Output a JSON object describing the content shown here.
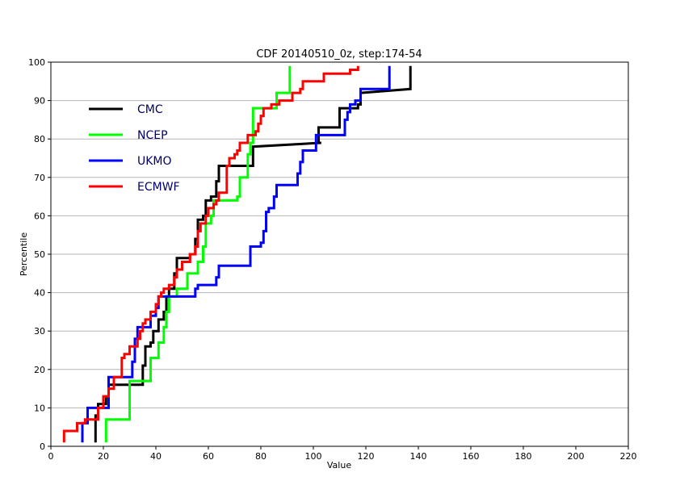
{
  "chart_data": {
    "type": "line",
    "title": "CDF 20140510_0z, step:174-54",
    "xlabel": "Value",
    "ylabel": "Percentile",
    "xlim": [
      0,
      220
    ],
    "ylim": [
      0,
      100
    ],
    "xticks": [
      0,
      20,
      40,
      60,
      80,
      100,
      120,
      140,
      160,
      180,
      200,
      220
    ],
    "yticks": [
      0,
      10,
      20,
      30,
      40,
      50,
      60,
      70,
      80,
      90,
      100
    ],
    "grid": "horizontal",
    "legend_position": "top-left",
    "series": [
      {
        "name": "CMC",
        "color": "#000000",
        "points": [
          [
            17,
            1
          ],
          [
            17,
            8
          ],
          [
            18,
            8
          ],
          [
            18,
            11
          ],
          [
            21,
            11
          ],
          [
            21,
            13
          ],
          [
            22,
            13
          ],
          [
            22,
            16
          ],
          [
            35,
            16
          ],
          [
            35,
            18
          ],
          [
            35,
            18
          ],
          [
            35,
            21
          ],
          [
            36,
            21
          ],
          [
            36,
            26
          ],
          [
            38,
            26
          ],
          [
            38,
            27
          ],
          [
            39,
            27
          ],
          [
            39,
            30
          ],
          [
            41,
            30
          ],
          [
            41,
            33
          ],
          [
            43,
            33
          ],
          [
            43,
            35
          ],
          [
            44,
            35
          ],
          [
            44,
            39
          ],
          [
            45,
            39
          ],
          [
            45,
            41
          ],
          [
            47,
            41
          ],
          [
            47,
            45
          ],
          [
            48,
            45
          ],
          [
            48,
            49
          ],
          [
            53,
            49
          ],
          [
            53,
            50
          ],
          [
            55,
            50
          ],
          [
            55,
            54
          ],
          [
            56,
            54
          ],
          [
            56,
            59
          ],
          [
            58,
            59
          ],
          [
            58,
            60
          ],
          [
            59,
            60
          ],
          [
            59,
            64
          ],
          [
            61,
            64
          ],
          [
            61,
            65
          ],
          [
            63,
            65
          ],
          [
            63,
            69
          ],
          [
            64,
            69
          ],
          [
            64,
            73
          ],
          [
            77,
            73
          ],
          [
            77,
            78
          ],
          [
            103,
            79
          ],
          [
            102,
            79
          ],
          [
            102,
            83
          ],
          [
            110,
            83
          ],
          [
            110,
            88
          ],
          [
            117,
            88
          ],
          [
            117,
            89
          ],
          [
            118,
            89
          ],
          [
            118,
            92
          ],
          [
            137,
            93
          ],
          [
            137,
            99
          ]
        ]
      },
      {
        "name": "NCEP",
        "color": "#00ff00",
        "points": [
          [
            21,
            1
          ],
          [
            21,
            7
          ],
          [
            30,
            7
          ],
          [
            30,
            17
          ],
          [
            38,
            17
          ],
          [
            38,
            23
          ],
          [
            41,
            23
          ],
          [
            41,
            27
          ],
          [
            43,
            27
          ],
          [
            43,
            31
          ],
          [
            44,
            31
          ],
          [
            44,
            35
          ],
          [
            45,
            35
          ],
          [
            45,
            39
          ],
          [
            48,
            39
          ],
          [
            48,
            41
          ],
          [
            52,
            41
          ],
          [
            52,
            45
          ],
          [
            56,
            45
          ],
          [
            56,
            48
          ],
          [
            58,
            48
          ],
          [
            58,
            52
          ],
          [
            59,
            52
          ],
          [
            59,
            58
          ],
          [
            61,
            58
          ],
          [
            61,
            60
          ],
          [
            62,
            60
          ],
          [
            62,
            64
          ],
          [
            71,
            64
          ],
          [
            71,
            65
          ],
          [
            72,
            65
          ],
          [
            72,
            70
          ],
          [
            75,
            70
          ],
          [
            75,
            76
          ],
          [
            76,
            76
          ],
          [
            76,
            79
          ],
          [
            77,
            79
          ],
          [
            77,
            88
          ],
          [
            86,
            88
          ],
          [
            86,
            92
          ],
          [
            91,
            92
          ],
          [
            91,
            99
          ]
        ]
      },
      {
        "name": "UKMO",
        "color": "#0000ff",
        "points": [
          [
            12,
            1
          ],
          [
            12,
            6
          ],
          [
            14,
            6
          ],
          [
            14,
            10
          ],
          [
            22,
            10
          ],
          [
            22,
            12
          ],
          [
            22,
            12
          ],
          [
            22,
            18
          ],
          [
            31,
            18
          ],
          [
            31,
            22
          ],
          [
            32,
            22
          ],
          [
            32,
            25
          ],
          [
            32,
            25
          ],
          [
            32,
            28
          ],
          [
            33,
            28
          ],
          [
            33,
            31
          ],
          [
            38,
            31
          ],
          [
            38,
            34
          ],
          [
            40,
            34
          ],
          [
            40,
            36
          ],
          [
            41,
            36
          ],
          [
            41,
            39
          ],
          [
            55,
            39
          ],
          [
            55,
            41
          ],
          [
            56,
            41
          ],
          [
            56,
            42
          ],
          [
            63,
            42
          ],
          [
            63,
            44
          ],
          [
            64,
            44
          ],
          [
            64,
            47
          ],
          [
            76,
            47
          ],
          [
            76,
            52
          ],
          [
            80,
            52
          ],
          [
            80,
            53
          ],
          [
            81,
            53
          ],
          [
            81,
            56
          ],
          [
            82,
            56
          ],
          [
            82,
            58
          ],
          [
            82,
            58
          ],
          [
            82,
            61
          ],
          [
            83,
            61
          ],
          [
            83,
            62
          ],
          [
            85,
            62
          ],
          [
            85,
            65
          ],
          [
            86,
            65
          ],
          [
            86,
            68
          ],
          [
            94,
            68
          ],
          [
            94,
            71
          ],
          [
            95,
            71
          ],
          [
            95,
            74
          ],
          [
            96,
            74
          ],
          [
            96,
            77
          ],
          [
            101,
            77
          ],
          [
            101,
            79
          ],
          [
            101,
            79
          ],
          [
            101,
            81
          ],
          [
            112,
            81
          ],
          [
            112,
            85
          ],
          [
            113,
            85
          ],
          [
            113,
            87
          ],
          [
            114,
            87
          ],
          [
            114,
            89
          ],
          [
            116,
            89
          ],
          [
            116,
            90
          ],
          [
            118,
            90
          ],
          [
            118,
            93
          ],
          [
            129,
            93
          ],
          [
            129,
            99
          ]
        ]
      },
      {
        "name": "ECMWF",
        "color": "#ff0000",
        "points": [
          [
            5,
            1
          ],
          [
            5,
            4
          ],
          [
            10,
            4
          ],
          [
            10,
            6
          ],
          [
            13,
            6
          ],
          [
            13,
            7
          ],
          [
            18,
            7
          ],
          [
            18,
            10
          ],
          [
            20,
            10
          ],
          [
            20,
            13
          ],
          [
            22,
            13
          ],
          [
            22,
            15
          ],
          [
            24,
            15
          ],
          [
            24,
            18
          ],
          [
            27,
            18
          ],
          [
            27,
            21
          ],
          [
            27,
            21
          ],
          [
            27,
            23
          ],
          [
            28,
            23
          ],
          [
            28,
            24
          ],
          [
            30,
            24
          ],
          [
            30,
            26
          ],
          [
            33,
            26
          ],
          [
            33,
            28
          ],
          [
            34,
            28
          ],
          [
            34,
            30
          ],
          [
            35,
            30
          ],
          [
            35,
            32
          ],
          [
            36,
            32
          ],
          [
            36,
            33
          ],
          [
            38,
            33
          ],
          [
            38,
            35
          ],
          [
            40,
            35
          ],
          [
            40,
            37
          ],
          [
            41,
            37
          ],
          [
            41,
            39
          ],
          [
            42,
            39
          ],
          [
            42,
            40
          ],
          [
            43,
            40
          ],
          [
            43,
            41
          ],
          [
            45,
            41
          ],
          [
            45,
            42
          ],
          [
            47,
            42
          ],
          [
            47,
            44
          ],
          [
            48,
            44
          ],
          [
            48,
            46
          ],
          [
            50,
            46
          ],
          [
            50,
            48
          ],
          [
            53,
            48
          ],
          [
            53,
            50
          ],
          [
            55,
            50
          ],
          [
            55,
            52
          ],
          [
            56,
            52
          ],
          [
            56,
            56
          ],
          [
            57,
            56
          ],
          [
            57,
            58
          ],
          [
            59,
            58
          ],
          [
            59,
            60
          ],
          [
            60,
            60
          ],
          [
            60,
            62
          ],
          [
            62,
            62
          ],
          [
            62,
            63
          ],
          [
            63,
            63
          ],
          [
            63,
            64
          ],
          [
            64,
            64
          ],
          [
            64,
            66
          ],
          [
            67,
            66
          ],
          [
            67,
            73
          ],
          [
            68,
            73
          ],
          [
            68,
            75
          ],
          [
            70,
            75
          ],
          [
            70,
            76
          ],
          [
            71,
            76
          ],
          [
            71,
            77
          ],
          [
            72,
            77
          ],
          [
            72,
            79
          ],
          [
            75,
            79
          ],
          [
            75,
            81
          ],
          [
            78,
            81
          ],
          [
            78,
            82
          ],
          [
            79,
            82
          ],
          [
            79,
            84
          ],
          [
            80,
            84
          ],
          [
            80,
            86
          ],
          [
            81,
            86
          ],
          [
            81,
            88
          ],
          [
            84,
            88
          ],
          [
            84,
            89
          ],
          [
            87,
            89
          ],
          [
            87,
            90
          ],
          [
            92,
            90
          ],
          [
            92,
            92
          ],
          [
            95,
            92
          ],
          [
            95,
            93
          ],
          [
            96,
            93
          ],
          [
            96,
            95
          ],
          [
            104,
            95
          ],
          [
            104,
            97
          ],
          [
            114,
            97
          ],
          [
            114,
            98
          ],
          [
            117,
            98
          ],
          [
            117,
            99
          ]
        ]
      }
    ]
  }
}
